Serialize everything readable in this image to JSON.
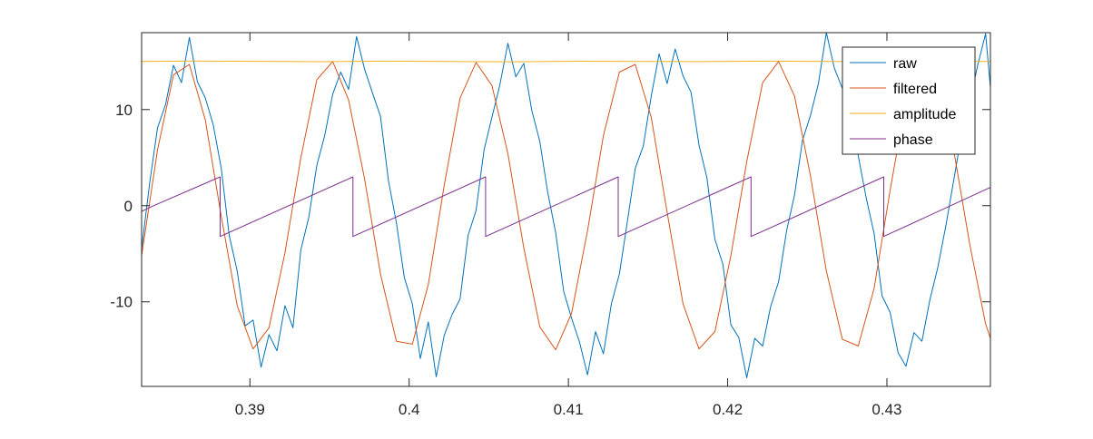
{
  "chart_data": {
    "type": "line",
    "title": "",
    "xlabel": "",
    "ylabel": "",
    "xlim": [
      0.3832,
      0.4365
    ],
    "ylim": [
      -18.8,
      18.0
    ],
    "x_ticks": [
      0.39,
      0.4,
      0.41,
      0.42,
      0.43
    ],
    "x_tick_labels": [
      "0.39",
      "0.4",
      "0.41",
      "0.42",
      "0.43"
    ],
    "y_ticks": [
      -10,
      0,
      10
    ],
    "y_tick_labels": [
      "-10",
      "0",
      "10"
    ],
    "grid": false,
    "legend_position": "top-right",
    "signal": {
      "frequency_hz": 120,
      "amplitude": 15,
      "phase_wrap_period_s": 0.008333,
      "phase_at_wrap_end": 3.0,
      "phase_at_wrap_start": -3.2
    },
    "series": [
      {
        "name": "raw",
        "color": "#0072BD",
        "x": [
          0.3832,
          0.3837,
          0.3842,
          0.3847,
          0.3852,
          0.3857,
          0.3862,
          0.3867,
          0.3872,
          0.3877,
          0.3882,
          0.3887,
          0.3892,
          0.3897,
          0.3902,
          0.3907,
          0.3912,
          0.3917,
          0.3922,
          0.3927,
          0.3932,
          0.3937,
          0.3942,
          0.3947,
          0.3952,
          0.3957,
          0.3962,
          0.3967,
          0.3972,
          0.3977,
          0.3982,
          0.3987,
          0.3992,
          0.3997,
          0.4002,
          0.4007,
          0.4012,
          0.4017,
          0.4022,
          0.4027,
          0.4032,
          0.4037,
          0.4042,
          0.4047,
          0.4052,
          0.4057,
          0.4062,
          0.4067,
          0.4072,
          0.4077,
          0.4082,
          0.4087,
          0.4092,
          0.4097,
          0.4102,
          0.4107,
          0.4112,
          0.4117,
          0.4122,
          0.4127,
          0.4132,
          0.4137,
          0.4142,
          0.4147,
          0.4152,
          0.4157,
          0.4162,
          0.4167,
          0.4172,
          0.4177,
          0.4182,
          0.4187,
          0.4192,
          0.4197,
          0.4202,
          0.4207,
          0.4212,
          0.4217,
          0.4222,
          0.4227,
          0.4232,
          0.4237,
          0.4242,
          0.4247,
          0.4252,
          0.4257,
          0.4262,
          0.4267,
          0.4272,
          0.4277,
          0.4282,
          0.4287,
          0.4292,
          0.4297,
          0.4302,
          0.4307,
          0.4312,
          0.4317,
          0.4322,
          0.4327,
          0.4332,
          0.4337,
          0.4342,
          0.4347,
          0.4352,
          0.4357,
          0.4362,
          0.4365
        ],
        "y": [
          -4.5,
          2.3,
          8.1,
          10.5,
          14.6,
          12.8,
          17.5,
          12.9,
          11.2,
          8.4,
          3.9,
          -3.1,
          -6.8,
          -12.5,
          -11.9,
          -16.8,
          -13.4,
          -15.1,
          -10.4,
          -12.7,
          -4.6,
          -1.2,
          4.2,
          7.3,
          11.6,
          13.9,
          12.1,
          17.6,
          14.2,
          11.7,
          9.3,
          2.6,
          -1.8,
          -7.5,
          -10.2,
          -15.9,
          -12.1,
          -17.8,
          -13.5,
          -11.3,
          -9.7,
          -3.1,
          -0.5,
          5.8,
          9.2,
          12.6,
          16.9,
          13.4,
          14.8,
          9.9,
          6.7,
          1.4,
          -2.8,
          -8.9,
          -11.7,
          -14.2,
          -17.6,
          -13.1,
          -15.4,
          -10.2,
          -7.1,
          -1.7,
          3.9,
          6.2,
          11.4,
          15.8,
          12.7,
          16.3,
          13.5,
          11.8,
          6.3,
          2.9,
          -3.5,
          -6.1,
          -12.4,
          -13.7,
          -17.9,
          -13.8,
          -14.6,
          -10.5,
          -7.9,
          -2.6,
          1.1,
          6.8,
          9.4,
          12.7,
          18.0,
          14.3,
          12.2,
          10.6,
          5.2,
          0.8,
          -2.9,
          -9.4,
          -11.1,
          -15.3,
          -16.7,
          -13.2,
          -14.1,
          -9.8,
          -6.4,
          -2.1,
          2.7,
          7.5,
          10.8,
          14.6,
          17.9,
          12.3
        ]
      },
      {
        "name": "filtered",
        "color": "#D95319",
        "x": [
          0.3832,
          0.3842,
          0.3852,
          0.3862,
          0.3872,
          0.3882,
          0.3892,
          0.3902,
          0.3912,
          0.3922,
          0.3932,
          0.3942,
          0.3952,
          0.3962,
          0.3972,
          0.3982,
          0.3992,
          0.4002,
          0.4012,
          0.4022,
          0.4032,
          0.4042,
          0.4052,
          0.4062,
          0.4072,
          0.4082,
          0.4092,
          0.4102,
          0.4112,
          0.4122,
          0.4132,
          0.4142,
          0.4152,
          0.4162,
          0.4172,
          0.4182,
          0.4192,
          0.4202,
          0.4212,
          0.4222,
          0.4232,
          0.4242,
          0.4252,
          0.4262,
          0.4272,
          0.4282,
          0.4292,
          0.4302,
          0.4312,
          0.4322,
          0.4332,
          0.4342,
          0.4352,
          0.4362,
          0.4365
        ],
        "y": [
          -5.2,
          5.8,
          13.6,
          14.7,
          8.9,
          -1.1,
          -10.4,
          -14.9,
          -12.7,
          -4.9,
          5.0,
          13.1,
          15.0,
          11.0,
          2.8,
          -7.1,
          -14.1,
          -14.4,
          -8.2,
          2.1,
          11.2,
          14.9,
          12.5,
          5.4,
          -4.4,
          -12.6,
          -15.0,
          -11.2,
          -2.6,
          7.3,
          13.9,
          14.7,
          9.2,
          -0.7,
          -10.2,
          -14.9,
          -13.1,
          -5.2,
          4.6,
          12.8,
          15.0,
          11.4,
          3.1,
          -6.8,
          -13.9,
          -14.6,
          -8.6,
          1.6,
          10.9,
          14.8,
          12.7,
          5.7,
          -4.0,
          -12.3,
          -13.8
        ]
      },
      {
        "name": "amplitude",
        "color": "#EDB120",
        "x": [
          0.3832,
          0.3865,
          0.3905,
          0.3945,
          0.3985,
          0.4025,
          0.4065,
          0.4105,
          0.4145,
          0.4185,
          0.4225,
          0.4265,
          0.4305,
          0.4345,
          0.4365
        ],
        "y": [
          15.0,
          15.05,
          15.02,
          14.98,
          15.04,
          15.0,
          14.97,
          15.03,
          15.01,
          14.99,
          15.04,
          15.0,
          14.96,
          15.02,
          15.0
        ]
      },
      {
        "name": "phase",
        "color": "#7E2F8E",
        "x": [
          0.3832,
          0.38395,
          0.38813,
          0.38813,
          0.39647,
          0.39647,
          0.4048,
          0.4048,
          0.41313,
          0.41313,
          0.42147,
          0.42147,
          0.4298,
          0.4298,
          0.4365
        ],
        "y": [
          -0.6,
          0.0,
          3.0,
          -3.2,
          3.0,
          -3.2,
          3.0,
          -3.2,
          3.0,
          -3.2,
          3.0,
          -3.2,
          3.0,
          -3.2,
          1.9
        ]
      }
    ]
  }
}
